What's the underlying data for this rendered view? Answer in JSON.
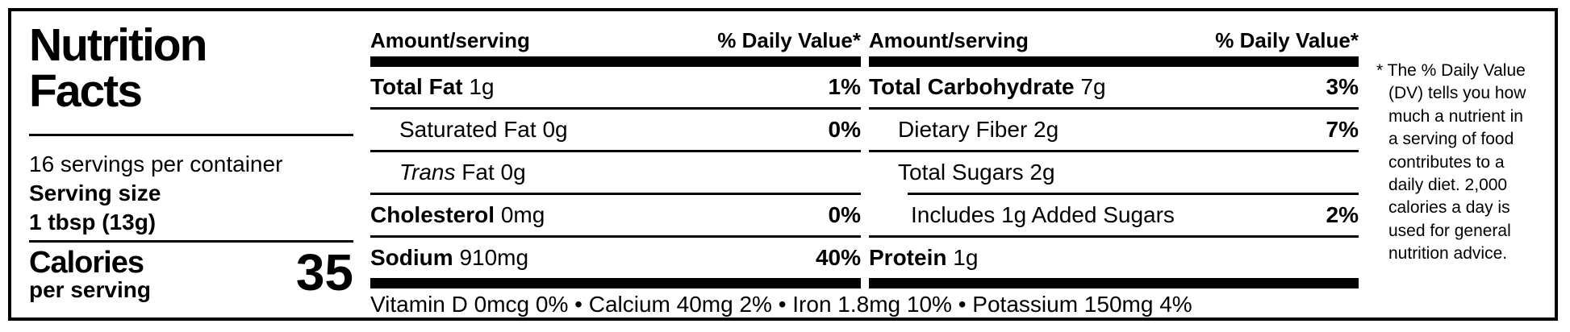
{
  "panel": {
    "title_line1": "Nutrition",
    "title_line2": "Facts",
    "servings_per_container": "16 servings per container",
    "serving_size_label": "Serving size",
    "serving_size_value": "1 tbsp (13g)",
    "calories_label": "Calories",
    "calories_sublabel": "per serving",
    "calories_value": "35"
  },
  "col1": {
    "header_amount": "Amount/serving",
    "header_dv": "% Daily Value*",
    "rows": [
      {
        "label": "Total Fat",
        "value": "1g",
        "dv": "1%"
      },
      {
        "label": "Saturated Fat",
        "value": "0g",
        "dv": "0%"
      },
      {
        "label_italic": "Trans",
        "label": "Fat",
        "value": "0g"
      },
      {
        "label": "Cholesterol",
        "value": "0mg",
        "dv": "0%"
      },
      {
        "label": "Sodium",
        "value": "910mg",
        "dv": "40%"
      }
    ]
  },
  "col2": {
    "header_amount": "Amount/serving",
    "header_dv": "% Daily Value*",
    "rows": [
      {
        "label": "Total Carbohydrate",
        "value": "7g",
        "dv": "3%"
      },
      {
        "label": "Dietary Fiber",
        "value": "2g",
        "dv": "7%"
      },
      {
        "label": "Total Sugars",
        "value": "2g"
      },
      {
        "label": "Includes 1g Added Sugars",
        "dv": "2%"
      },
      {
        "label": "Protein",
        "value": "1g"
      }
    ]
  },
  "micronutrients_line": "Vitamin D 0mcg 0% • Calcium 40mg 2% • Iron 1.8mg 10% • Potassium 150mg 4%",
  "footnote": "* The % Daily Value\n(DV) tells you how\nmuch a nutrient in\na serving of food\ncontributes to a\ndaily diet. 2,000\ncalories a day is\nused for general\nnutrition advice."
}
